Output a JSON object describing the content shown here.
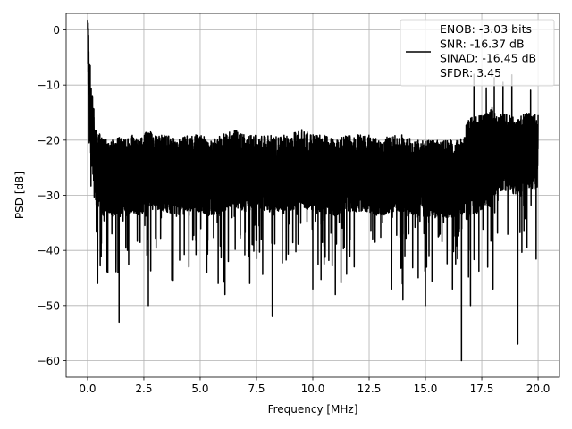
{
  "chart_data": {
    "type": "line",
    "title": "",
    "xlabel": "Frequency [MHz]",
    "ylabel": "PSD [dB]",
    "xlim": [
      -0.95,
      20.95
    ],
    "ylim": [
      -63,
      3
    ],
    "xticks": [
      0.0,
      2.5,
      5.0,
      7.5,
      10.0,
      12.5,
      15.0,
      17.5,
      20.0
    ],
    "xtick_labels": [
      "0.0",
      "2.5",
      "5.0",
      "7.5",
      "10.0",
      "12.5",
      "15.0",
      "17.5",
      "20.0"
    ],
    "yticks": [
      0,
      -10,
      -20,
      -30,
      -40,
      -50,
      -60
    ],
    "ytick_labels": [
      "0",
      "−10",
      "−20",
      "−30",
      "−40",
      "−50",
      "−60"
    ],
    "grid": true,
    "legend_position": "top-right",
    "legend_lines": [
      "ENOB: -3.03 bits",
      "SNR: -16.37 dB",
      "SINAD: -16.45 dB",
      "SFDR: 3.45"
    ],
    "line_color": "#000000",
    "series": [
      {
        "x": [
          0.0,
          0.05,
          0.1,
          0.15,
          0.2,
          0.3,
          0.4,
          0.5,
          0.7,
          0.9,
          1.1,
          1.4,
          1.7,
          2.0,
          2.3,
          2.7,
          3.0,
          3.5,
          4.0,
          4.5,
          5.0,
          5.5,
          6.0,
          6.5,
          7.0,
          7.5,
          8.0,
          8.5,
          9.0,
          9.5,
          10.0,
          10.5,
          11.0,
          11.5,
          12.0,
          12.5,
          13.0,
          13.5,
          14.0,
          14.5,
          15.0,
          15.5,
          16.0,
          16.5,
          17.0,
          17.5,
          18.0,
          18.5,
          19.0,
          19.5,
          20.0
        ],
        "y": [
          0,
          -8,
          -12,
          -16,
          -18,
          -22,
          -26,
          -25,
          -27,
          -26,
          -27,
          -26,
          -27,
          -26,
          -27,
          -25,
          -26,
          -26,
          -27,
          -26,
          -26,
          -27,
          -26,
          -25,
          -26,
          -26,
          -26,
          -26,
          -26,
          -25,
          -26,
          -26,
          -27,
          -26,
          -26,
          -26,
          -27,
          -26,
          -26,
          -27,
          -27,
          -27,
          -27,
          -27,
          -25,
          -24,
          -23,
          -22,
          -23,
          -22,
          -22
        ]
      }
    ],
    "series_min": [
      {
        "x": 0.45,
        "y": -46
      },
      {
        "x": 0.9,
        "y": -44
      },
      {
        "x": 1.35,
        "y": -44
      },
      {
        "x": 1.4,
        "y": -53
      },
      {
        "x": 2.7,
        "y": -50
      },
      {
        "x": 4.5,
        "y": -43
      },
      {
        "x": 5.8,
        "y": -46
      },
      {
        "x": 6.1,
        "y": -48
      },
      {
        "x": 7.2,
        "y": -46
      },
      {
        "x": 8.2,
        "y": -52
      },
      {
        "x": 10.0,
        "y": -47
      },
      {
        "x": 11.0,
        "y": -48
      },
      {
        "x": 13.5,
        "y": -47
      },
      {
        "x": 14.0,
        "y": -49
      },
      {
        "x": 15.0,
        "y": -50
      },
      {
        "x": 16.2,
        "y": -47
      },
      {
        "x": 16.6,
        "y": -60
      },
      {
        "x": 17.0,
        "y": -50
      },
      {
        "x": 18.0,
        "y": -47
      },
      {
        "x": 19.1,
        "y": -57
      }
    ]
  }
}
